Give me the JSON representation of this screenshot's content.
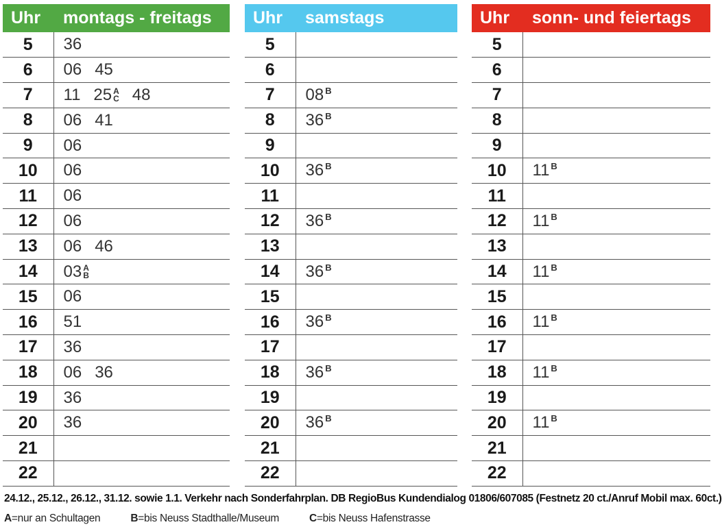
{
  "colors": {
    "weekday": "#52a944",
    "saturday": "#55c8ee",
    "sunday": "#e32d20"
  },
  "hours": [
    "5",
    "6",
    "7",
    "8",
    "9",
    "10",
    "11",
    "12",
    "13",
    "14",
    "15",
    "16",
    "17",
    "18",
    "19",
    "20",
    "21",
    "22"
  ],
  "panels": [
    {
      "hour_label": "Uhr",
      "day_label": "montags - freitags",
      "rows": [
        [
          {
            "t": "36"
          }
        ],
        [
          {
            "t": "06"
          },
          {
            "t": "45"
          }
        ],
        [
          {
            "t": "11"
          },
          {
            "t": "25",
            "stack": [
              "A",
              "C"
            ]
          },
          {
            "t": "48"
          }
        ],
        [
          {
            "t": "06"
          },
          {
            "t": "41"
          }
        ],
        [
          {
            "t": "06"
          }
        ],
        [
          {
            "t": "06"
          }
        ],
        [
          {
            "t": "06"
          }
        ],
        [
          {
            "t": "06"
          }
        ],
        [
          {
            "t": "06"
          },
          {
            "t": "46"
          }
        ],
        [
          {
            "t": "03",
            "stack": [
              "A",
              "B"
            ]
          }
        ],
        [
          {
            "t": "06"
          }
        ],
        [
          {
            "t": "51"
          }
        ],
        [
          {
            "t": "36"
          }
        ],
        [
          {
            "t": "06"
          },
          {
            "t": "36"
          }
        ],
        [
          {
            "t": "36"
          }
        ],
        [
          {
            "t": "36"
          }
        ],
        [],
        []
      ]
    },
    {
      "hour_label": "Uhr",
      "day_label": "samstags",
      "rows": [
        [],
        [],
        [
          {
            "t": "08",
            "sup": "B"
          }
        ],
        [
          {
            "t": "36",
            "sup": "B"
          }
        ],
        [],
        [
          {
            "t": "36",
            "sup": "B"
          }
        ],
        [],
        [
          {
            "t": "36",
            "sup": "B"
          }
        ],
        [],
        [
          {
            "t": "36",
            "sup": "B"
          }
        ],
        [],
        [
          {
            "t": "36",
            "sup": "B"
          }
        ],
        [],
        [
          {
            "t": "36",
            "sup": "B"
          }
        ],
        [],
        [
          {
            "t": "36",
            "sup": "B"
          }
        ],
        [],
        []
      ]
    },
    {
      "hour_label": "Uhr",
      "day_label": "sonn- und feiertags",
      "rows": [
        [],
        [],
        [],
        [],
        [],
        [
          {
            "t": "11",
            "sup": "B"
          }
        ],
        [],
        [
          {
            "t": "11",
            "sup": "B"
          }
        ],
        [],
        [
          {
            "t": "11",
            "sup": "B"
          }
        ],
        [],
        [
          {
            "t": "11",
            "sup": "B"
          }
        ],
        [],
        [
          {
            "t": "11",
            "sup": "B"
          }
        ],
        [],
        [
          {
            "t": "11",
            "sup": "B"
          }
        ],
        [],
        []
      ]
    }
  ],
  "footer": {
    "note": "24.12., 25.12., 26.12., 31.12. sowie 1.1. Verkehr nach Sonderfahrplan. DB RegioBus Kundendialog 01806/607085 (Festnetz 20 ct./Anruf Mobil max. 60ct.)",
    "legend": [
      {
        "key": "A",
        "text": "=nur an Schultagen"
      },
      {
        "key": "B",
        "text": "=bis Neuss Stadthalle/Museum"
      },
      {
        "key": "C",
        "text": "=bis Neuss Hafenstrasse"
      }
    ]
  }
}
